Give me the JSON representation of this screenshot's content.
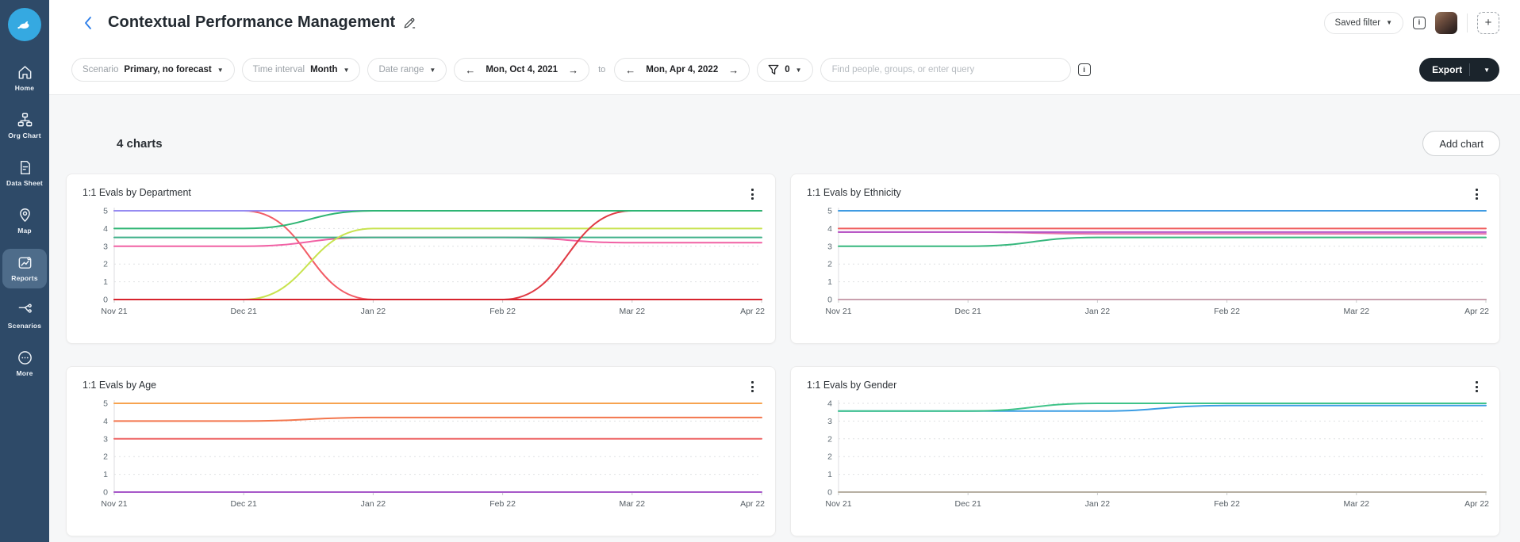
{
  "colors": {
    "sidebar_bg": "#2e4a68",
    "sidebar_active": "#4e6c8a",
    "logo_blue": "#35a9e1",
    "accent_blue": "#2b7de9",
    "export_bg": "#1b242c",
    "content_bg": "#f6f7f8"
  },
  "sidebar": {
    "items": [
      {
        "label": "Home",
        "icon": "home-icon",
        "active": false
      },
      {
        "label": "Org Chart",
        "icon": "org-chart-icon",
        "active": false
      },
      {
        "label": "Data Sheet",
        "icon": "data-sheet-icon",
        "active": false
      },
      {
        "label": "Map",
        "icon": "map-pin-icon",
        "active": false
      },
      {
        "label": "Reports",
        "icon": "reports-icon",
        "active": true
      },
      {
        "label": "Scenarios",
        "icon": "scenarios-icon",
        "active": false
      },
      {
        "label": "More",
        "icon": "more-icon",
        "active": false
      }
    ]
  },
  "header": {
    "title": "Contextual Performance Management",
    "saved_filter_label": "Saved filter",
    "info_glyph": "i",
    "plus_glyph": "+"
  },
  "filter_bar": {
    "scenario": {
      "label": "Scenario",
      "value": "Primary, no forecast"
    },
    "time_interval": {
      "label": "Time interval",
      "value": "Month"
    },
    "date_range": {
      "label": "Date range"
    },
    "start_date": "Mon, Oct 4, 2021",
    "to_label": "to",
    "end_date": "Mon, Apr 4, 2022",
    "filter_count": "0",
    "search_placeholder": "Find people, groups, or enter query",
    "info_glyph": "i",
    "export_label": "Export"
  },
  "content": {
    "charts_count_label": "4 charts",
    "add_chart_label": "Add chart"
  },
  "chart_data": [
    {
      "type": "line",
      "title": "1:1 Evals by Department",
      "x": [
        "Nov 21",
        "Dec 21",
        "Jan 22",
        "Feb 22",
        "Mar 22",
        "Apr 22"
      ],
      "ymax": 5,
      "yticks": [
        "5",
        "4",
        "3",
        "2",
        "1",
        "0"
      ],
      "grid": "dashed-horizontal",
      "legend": "none",
      "series": [
        {
          "name": "salmon-red",
          "color": "#f25c66",
          "values": [
            5,
            5,
            0,
            0,
            0,
            0
          ]
        },
        {
          "name": "purple",
          "color": "#968bf2",
          "values": [
            5,
            5,
            5,
            5,
            5,
            5
          ]
        },
        {
          "name": "pink",
          "color": "#f161a4",
          "values": [
            3,
            3,
            3.5,
            3.5,
            3.2,
            3.2
          ]
        },
        {
          "name": "teal-green",
          "color": "#3fb089",
          "values": [
            3.5,
            3.5,
            3.5,
            3.5,
            3.5,
            3.5
          ]
        },
        {
          "name": "lime",
          "color": "#c8e34f",
          "values": [
            0,
            0,
            4,
            4,
            4,
            4
          ]
        },
        {
          "name": "bright-red",
          "color": "#e03a44",
          "values": [
            0,
            0,
            0,
            0,
            5,
            5
          ]
        },
        {
          "name": "dark-red",
          "color": "#d7242e",
          "values": [
            0,
            0,
            0,
            0,
            0,
            0
          ]
        },
        {
          "name": "green",
          "color": "#2eb573",
          "values": [
            4,
            4,
            5,
            5,
            5,
            5
          ]
        }
      ]
    },
    {
      "type": "line",
      "title": "1:1 Evals by Ethnicity",
      "x": [
        "Nov 21",
        "Dec 21",
        "Jan 22",
        "Feb 22",
        "Mar 22",
        "Apr 22"
      ],
      "ymax": 5,
      "yticks": [
        "5",
        "4",
        "3",
        "2",
        "1",
        "0"
      ],
      "grid": "dashed-horizontal",
      "legend": "none",
      "series": [
        {
          "name": "gray",
          "color": "#a9b6bd",
          "values": [
            0,
            0,
            0,
            0,
            0,
            0
          ]
        },
        {
          "name": "mauve",
          "color": "#c9a0ae",
          "values": [
            0,
            0,
            0,
            0,
            0,
            0
          ]
        },
        {
          "name": "pink",
          "color": "#e473ae",
          "values": [
            3.8,
            3.8,
            3.7,
            3.7,
            3.7,
            3.7
          ]
        },
        {
          "name": "magenta-purple",
          "color": "#b452c6",
          "values": [
            3.8,
            3.8,
            3.8,
            3.8,
            3.8,
            3.8
          ]
        },
        {
          "name": "red",
          "color": "#ef5c5c",
          "values": [
            4,
            4,
            4,
            4,
            4,
            4
          ]
        },
        {
          "name": "blue",
          "color": "#3f9be2",
          "values": [
            5,
            5,
            5,
            5,
            5,
            5
          ]
        },
        {
          "name": "green",
          "color": "#36b77d",
          "values": [
            3,
            3,
            3.5,
            3.5,
            3.5,
            3.5
          ]
        }
      ]
    },
    {
      "type": "line",
      "title": "1:1 Evals by Age",
      "x": [
        "Nov 21",
        "Dec 21",
        "Jan 22",
        "Feb 22",
        "Mar 22",
        "Apr 22"
      ],
      "ymax": 5,
      "yticks": [
        "5",
        "4",
        "3",
        "2",
        "1",
        "0"
      ],
      "grid": "dashed-horizontal",
      "legend": "none",
      "series": [
        {
          "name": "purple",
          "color": "#a657c8",
          "values": [
            0,
            0,
            0,
            0,
            0,
            0
          ]
        },
        {
          "name": "red",
          "color": "#ee6565",
          "values": [
            3,
            3,
            3,
            3,
            3,
            3
          ]
        },
        {
          "name": "coral",
          "color": "#f3764d",
          "values": [
            4,
            4,
            4.2,
            4.2,
            4.2,
            4.2
          ]
        },
        {
          "name": "orange",
          "color": "#f7a34f",
          "values": [
            5,
            5,
            5,
            5,
            5,
            5
          ]
        }
      ]
    },
    {
      "type": "line",
      "title": "1:1 Evals by Gender",
      "x": [
        "Nov 21",
        "Dec 21",
        "Jan 22",
        "Feb 22",
        "Mar 22",
        "Apr 22"
      ],
      "ymax": 4,
      "yticks": [
        "4",
        "3",
        "2",
        "2",
        "1",
        "0"
      ],
      "grid": "dashed-horizontal",
      "legend": "none",
      "series": [
        {
          "name": "gray",
          "color": "#b7b0a3",
          "values": [
            0,
            0,
            0,
            0,
            0,
            0
          ]
        },
        {
          "name": "blue",
          "color": "#3b9de4",
          "values": [
            3.65,
            3.65,
            3.65,
            3.9,
            3.9,
            3.9
          ]
        },
        {
          "name": "green",
          "color": "#3fc389",
          "values": [
            3.65,
            3.65,
            4,
            4,
            4,
            4
          ]
        }
      ]
    }
  ]
}
